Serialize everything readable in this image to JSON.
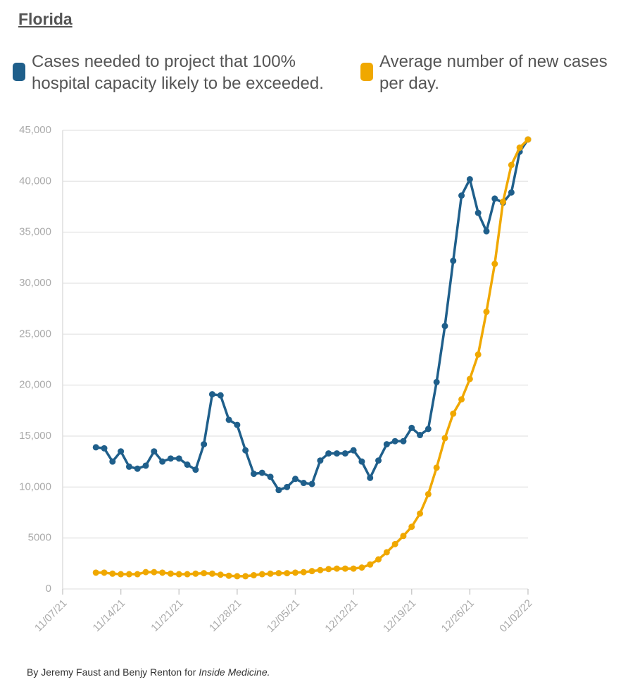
{
  "chart_data": {
    "type": "line",
    "title": "Florida",
    "credit": {
      "text": "By Jeremy Faust and Benjy Renton for",
      "source": "Inside Medicine."
    },
    "x": [
      "11/11/21",
      "11/12/21",
      "11/13/21",
      "11/14/21",
      "11/15/21",
      "11/16/21",
      "11/17/21",
      "11/18/21",
      "11/19/21",
      "11/20/21",
      "11/21/21",
      "11/22/21",
      "11/23/21",
      "11/24/21",
      "11/25/21",
      "11/26/21",
      "11/27/21",
      "11/28/21",
      "11/29/21",
      "11/30/21",
      "12/01/21",
      "12/02/21",
      "12/03/21",
      "12/04/21",
      "12/05/21",
      "12/06/21",
      "12/07/21",
      "12/08/21",
      "12/09/21",
      "12/10/21",
      "12/11/21",
      "12/12/21",
      "12/13/21",
      "12/14/21",
      "12/15/21",
      "12/16/21",
      "12/17/21",
      "12/18/21",
      "12/19/21",
      "12/20/21",
      "12/21/21",
      "12/22/21",
      "12/23/21",
      "12/24/21",
      "12/25/21",
      "12/26/21",
      "12/27/21",
      "12/28/21",
      "12/29/21",
      "12/30/21",
      "12/31/21",
      "01/01/22",
      "01/02/22"
    ],
    "series": [
      {
        "name": "Cases needed to project that 100% hospital capacity likely to be exceeded.",
        "color": "#1f5f8b",
        "values": [
          13900,
          13800,
          12500,
          13500,
          12000,
          11800,
          12100,
          13500,
          12500,
          12800,
          12800,
          12200,
          11700,
          14200,
          19100,
          19000,
          16600,
          16100,
          13600,
          11300,
          11400,
          11000,
          9700,
          10000,
          10800,
          10400,
          10300,
          12600,
          13300,
          13300,
          13300,
          13600,
          12500,
          10900,
          12600,
          14200,
          14500,
          14500,
          15800,
          15100,
          15700,
          20300,
          25800,
          32200,
          38600,
          40200,
          36900,
          35100,
          38300,
          37900,
          38900,
          42900,
          44100
        ]
      },
      {
        "name": "Average number of new cases per day.",
        "color": "#f0a800",
        "values": [
          1600,
          1600,
          1500,
          1450,
          1450,
          1450,
          1650,
          1650,
          1600,
          1500,
          1450,
          1450,
          1500,
          1550,
          1500,
          1400,
          1300,
          1250,
          1250,
          1350,
          1450,
          1500,
          1550,
          1550,
          1600,
          1650,
          1750,
          1850,
          1950,
          2000,
          2000,
          2000,
          2100,
          2400,
          2900,
          3600,
          4400,
          5200,
          6100,
          7400,
          9300,
          11900,
          14800,
          17200,
          18600,
          20600,
          23000,
          27200,
          31900,
          38000,
          41600,
          43300,
          44100
        ]
      }
    ],
    "xlim": [
      "11/07/21",
      "01/02/22"
    ],
    "xticks": [
      "11/07/21",
      "11/14/21",
      "11/21/21",
      "11/28/21",
      "12/05/21",
      "12/12/21",
      "12/19/21",
      "12/26/21",
      "01/02/22"
    ],
    "ylim": [
      0,
      45000
    ],
    "yticks": [
      0,
      5000,
      {
        "value": 10000,
        "label": "10,000"
      },
      {
        "value": 15000,
        "label": "15,000"
      },
      {
        "value": 20000,
        "label": "20,000"
      },
      {
        "value": 25000,
        "label": "25,000"
      },
      {
        "value": 30000,
        "label": "30,000"
      },
      {
        "value": 35000,
        "label": "35,000"
      },
      {
        "value": 40000,
        "label": "40,000"
      },
      {
        "value": 45000,
        "label": "45,000"
      }
    ],
    "grid": true
  }
}
